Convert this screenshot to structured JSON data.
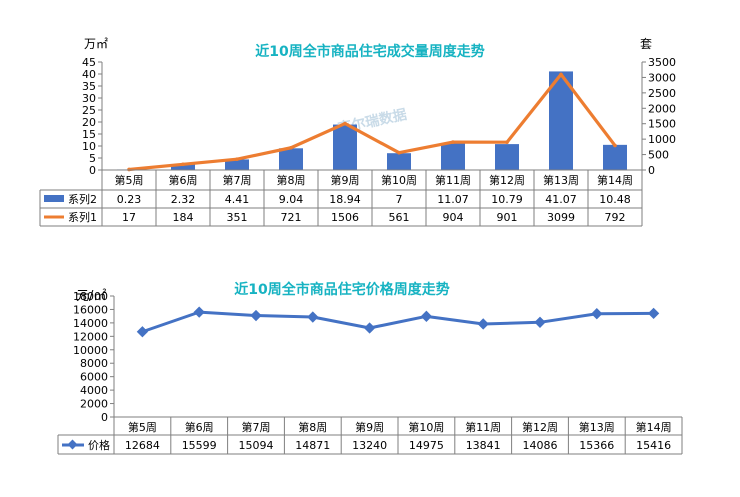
{
  "watermark": "克尔瑞数据",
  "chart_data": [
    {
      "type": "bar",
      "title": "近10周全市商品住宅成交量周度走势",
      "left_unit": "万㎡",
      "right_unit": "套",
      "categories": [
        "第5周",
        "第6周",
        "第7周",
        "第8周",
        "第9周",
        "第10周",
        "第11周",
        "第12周",
        "第13周",
        "第14周"
      ],
      "left_ylim": [
        0,
        45
      ],
      "left_ticks": [
        0,
        5,
        10,
        15,
        20,
        25,
        30,
        35,
        40,
        45
      ],
      "right_ylim": [
        0,
        3500
      ],
      "right_ticks": [
        0,
        500,
        1000,
        1500,
        2000,
        2500,
        3000,
        3500
      ],
      "series": [
        {
          "name": "系列2",
          "kind": "bar",
          "axis": "left",
          "color": "#4472c4",
          "values": [
            0.23,
            2.32,
            4.41,
            9.04,
            18.94,
            7,
            11.07,
            10.79,
            41.07,
            10.48
          ],
          "labels": [
            "0.23",
            "2.32",
            "4.41",
            "9.04",
            "18.94",
            "7",
            "11.07",
            "10.79",
            "41.07",
            "10.48"
          ]
        },
        {
          "name": "系列1",
          "kind": "line",
          "axis": "right",
          "color": "#ed7d31",
          "values": [
            17,
            184,
            351,
            721,
            1506,
            561,
            904,
            901,
            3099,
            792
          ],
          "labels": [
            "17",
            "184",
            "351",
            "721",
            "1506",
            "561",
            "904",
            "901",
            "3099",
            "792"
          ]
        }
      ]
    },
    {
      "type": "line",
      "title": "近10周全市商品住宅价格周度走势",
      "left_unit": "元/㎡",
      "categories": [
        "第5周",
        "第6周",
        "第7周",
        "第8周",
        "第9周",
        "第10周",
        "第11周",
        "第12周",
        "第13周",
        "第14周"
      ],
      "ylim": [
        0,
        18000
      ],
      "ticks": [
        0,
        2000,
        4000,
        6000,
        8000,
        10000,
        12000,
        14000,
        16000,
        18000
      ],
      "tick_labels": [
        "0",
        "2000",
        "4000",
        "6000",
        "8000",
        "10000",
        "12000",
        "14000",
        "16000",
        "18000"
      ],
      "series": [
        {
          "name": "价格",
          "color": "#4472c4",
          "values": [
            12684,
            15599,
            15094,
            14871,
            13240,
            14975,
            13841,
            14086,
            15366,
            15416
          ],
          "labels": [
            "12684",
            "15599",
            "15094",
            "14871",
            "13240",
            "14975",
            "13841",
            "14086",
            "15366",
            "15416"
          ]
        }
      ]
    }
  ]
}
